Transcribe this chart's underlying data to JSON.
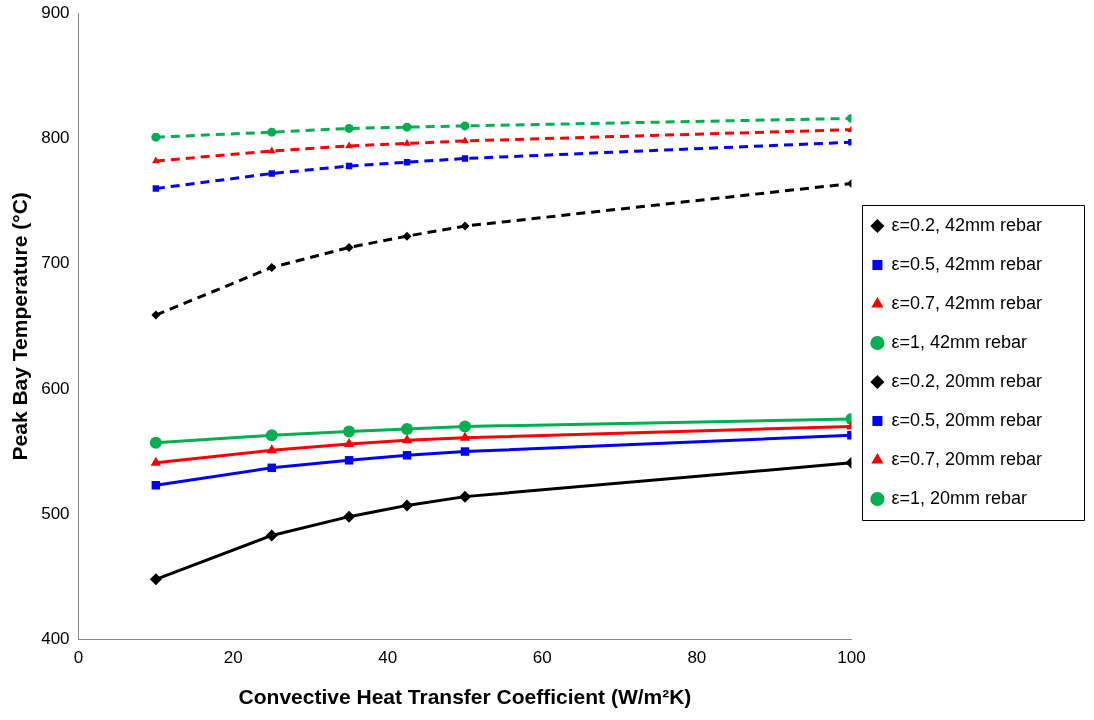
{
  "chart_data": {
    "type": "line",
    "xlabel": "Convective Heat Transfer Coefficient (W/m²K)",
    "ylabel": "Peak Bay Temperature (°C)",
    "x": [
      10,
      25,
      35,
      42.5,
      50,
      100
    ],
    "xlim": [
      0,
      100
    ],
    "xticks": [
      0,
      20,
      40,
      60,
      80,
      100
    ],
    "ylim": [
      400,
      900
    ],
    "yticks": [
      400,
      500,
      600,
      700,
      800,
      900
    ],
    "grid": false,
    "legend": "right",
    "series": [
      {
        "name": "ε=0.2, 42mm rebar",
        "color": "#000000",
        "marker": "diamond",
        "line_style": "solid",
        "values": [
          448,
          483,
          498,
          507,
          514,
          541
        ]
      },
      {
        "name": "ε=0.5, 42mm rebar",
        "color": "#0000ff",
        "marker": "square",
        "line_style": "solid",
        "values": [
          523,
          537,
          543,
          547,
          550,
          563
        ]
      },
      {
        "name": "ε=0.7, 42mm rebar",
        "color": "#ff0000",
        "marker": "triangle",
        "line_style": "solid",
        "values": [
          541,
          551,
          556,
          559,
          561,
          570
        ]
      },
      {
        "name": "ε=1, 42mm rebar",
        "color": "#00b050",
        "marker": "circle",
        "line_style": "solid",
        "values": [
          557,
          563,
          566,
          568,
          570,
          576
        ]
      },
      {
        "name": "ε=0.2, 20mm rebar",
        "color": "#000000",
        "marker": "diamond",
        "line_style": "dashed",
        "values": [
          659,
          697,
          713,
          722,
          730,
          764
        ]
      },
      {
        "name": "ε=0.5, 20mm rebar",
        "color": "#0000ff",
        "marker": "square",
        "line_style": "dashed",
        "values": [
          760,
          772,
          778,
          781,
          784,
          797
        ]
      },
      {
        "name": "ε=0.7, 20mm rebar",
        "color": "#ff0000",
        "marker": "triangle",
        "line_style": "dashed",
        "values": [
          782,
          790,
          794,
          796,
          798,
          807
        ]
      },
      {
        "name": "ε=1, 20mm rebar",
        "color": "#00b050",
        "marker": "circle",
        "line_style": "dashed",
        "values": [
          801,
          805,
          808,
          809,
          810,
          816
        ]
      }
    ]
  }
}
